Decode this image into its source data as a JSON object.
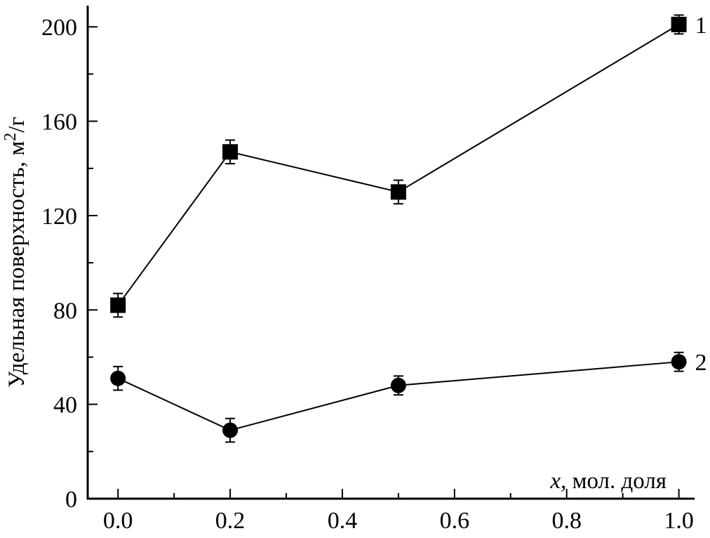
{
  "figure": {
    "background": "#ffffff"
  },
  "chart_data": {
    "type": "line",
    "title": "",
    "xlabel_italic": "x",
    "xlabel_rest": ", мол. доля",
    "ylabel_pre": "Удельная поверхность, м",
    "ylabel_sup": "2",
    "ylabel_post": "/г",
    "xlim": [
      -0.054,
      1.028
    ],
    "ylim": [
      0,
      209
    ],
    "x_major_ticks": [
      0.0,
      0.2,
      0.4,
      0.6,
      0.8,
      1.0
    ],
    "x_tick_labels": [
      "0.0",
      "0.2",
      "0.4",
      "0.6",
      "0.8",
      "1.0"
    ],
    "x_minor_ticks": [
      0.1,
      0.3,
      0.5,
      0.7,
      0.9
    ],
    "y_major_ticks": [
      0,
      40,
      80,
      120,
      160,
      200
    ],
    "y_tick_labels": [
      "0",
      "40",
      "80",
      "120",
      "160",
      "200"
    ],
    "y_minor_ticks": [
      20,
      60,
      100,
      140,
      180
    ],
    "grid": false,
    "legend": "inline numeric labels at last point of each series",
    "series": [
      {
        "name": "1",
        "label": "1",
        "marker": "square",
        "x": [
          0.0,
          0.2,
          0.5,
          1.0
        ],
        "y": [
          82,
          147,
          130,
          201
        ],
        "yerr": [
          5,
          5,
          5,
          4
        ]
      },
      {
        "name": "2",
        "label": "2",
        "marker": "circle",
        "x": [
          0.0,
          0.2,
          0.5,
          1.0
        ],
        "y": [
          51,
          29,
          48,
          58
        ],
        "yerr": [
          5,
          5,
          4,
          4
        ]
      }
    ],
    "colors": {
      "line": "#000000",
      "marker": "#000000",
      "axis": "#000000",
      "text": "#000000",
      "background": "#ffffff"
    }
  }
}
